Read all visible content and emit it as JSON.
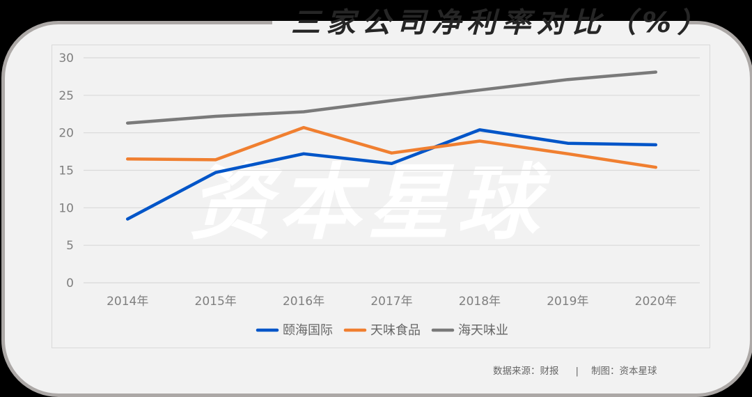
{
  "title": "三家公司净利率对比（%）",
  "watermark": "资本星球",
  "footer": {
    "source": "数据来源：财报",
    "separator": "|",
    "credit": "制图：资本星球"
  },
  "colors": {
    "background": "#000000",
    "card": "#f2f2f2",
    "card_border": "#aca8a6",
    "yihai": "#0055c8",
    "tianwei": "#f07f30",
    "haitian": "#7a7a7a",
    "grid": "#d9d9d9"
  },
  "chart_data": {
    "type": "line",
    "title": "三家公司净利率对比（%）",
    "xlabel": "",
    "ylabel": "",
    "categories": [
      "2014年",
      "2015年",
      "2016年",
      "2017年",
      "2018年",
      "2019年",
      "2020年"
    ],
    "yticks": [
      "0",
      "5",
      "10",
      "15",
      "20",
      "25",
      "30"
    ],
    "ylim": [
      0,
      30
    ],
    "grid": true,
    "legend_position": "bottom",
    "series": [
      {
        "name": "颐海国际",
        "color": "#0055c8",
        "values": [
          8.5,
          14.7,
          17.2,
          15.9,
          20.4,
          18.6,
          18.4
        ]
      },
      {
        "name": "天味食品",
        "color": "#f07f30",
        "values": [
          16.5,
          16.4,
          20.7,
          17.3,
          18.9,
          17.2,
          15.4
        ]
      },
      {
        "name": "海天味业",
        "color": "#7a7a7a",
        "values": [
          21.3,
          22.2,
          22.8,
          24.3,
          25.7,
          27.1,
          28.1
        ]
      }
    ]
  }
}
